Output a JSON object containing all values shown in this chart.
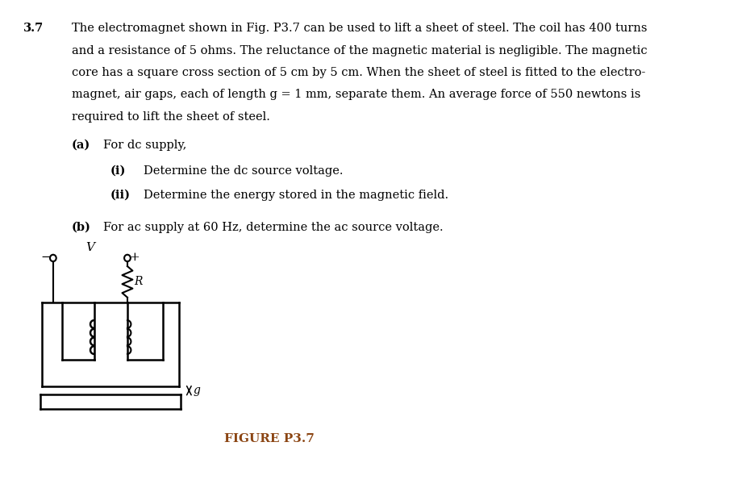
{
  "problem_number": "3.7",
  "line1": "The electromagnet shown in Fig. P3.7 can be used to lift a sheet of steel. The coil has 400 turns",
  "line2": "and a resistance of 5 ohms. The reluctance of the magnetic material is negligible. The magnetic",
  "line3": "core has a square cross section of 5 cm by 5 cm. When the sheet of steel is fitted to the electro-",
  "line4": "magnet, air gaps, each of length g = 1 mm, separate them. An average force of 550 newtons is",
  "line5": "required to lift the sheet of steel.",
  "part_a_label": "(a)",
  "part_a_text": "For dc supply,",
  "part_ai_label": "(i)",
  "part_ai_text": "Determine the dc source voltage.",
  "part_aii_label": "(ii)",
  "part_aii_text": "Determine the energy stored in the magnetic field.",
  "part_b_label": "(b)",
  "part_b_text": "For ac supply at 60 Hz, determine the ac source voltage.",
  "figure_label": "FIGURE P3.7",
  "bg_color": "#ffffff",
  "text_color": "#000000",
  "figure_label_color": "#8B4513"
}
